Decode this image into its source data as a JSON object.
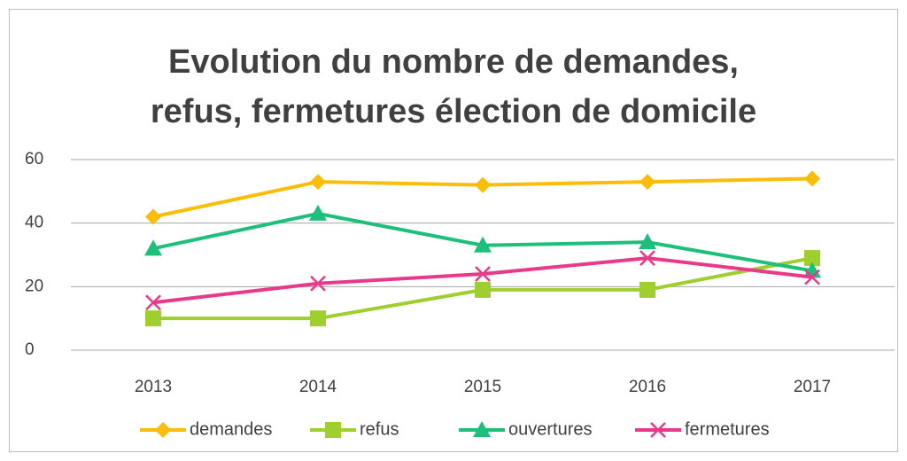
{
  "chart_data": {
    "type": "line",
    "title": [
      "Evolution du nombre de demandes,",
      "refus, fermetures élection de domicile"
    ],
    "categories": [
      "2013",
      "2014",
      "2015",
      "2016",
      "2017"
    ],
    "series": [
      {
        "name": "demandes",
        "color": "#fbbd08",
        "marker": "diamond",
        "values": [
          42,
          53,
          52,
          53,
          54
        ]
      },
      {
        "name": "refus",
        "color": "#9fcf2e",
        "marker": "square",
        "values": [
          10,
          10,
          19,
          19,
          29
        ]
      },
      {
        "name": "ouvertures",
        "color": "#1dbf7a",
        "marker": "triangle",
        "values": [
          32,
          43,
          33,
          34,
          25
        ]
      },
      {
        "name": "fermetures",
        "color": "#e8398a",
        "marker": "x",
        "values": [
          15,
          21,
          24,
          29,
          23
        ]
      }
    ],
    "ylim": [
      0,
      60
    ],
    "yticks": [
      0,
      20,
      40,
      60
    ],
    "grid": true,
    "legend": "bottom"
  }
}
